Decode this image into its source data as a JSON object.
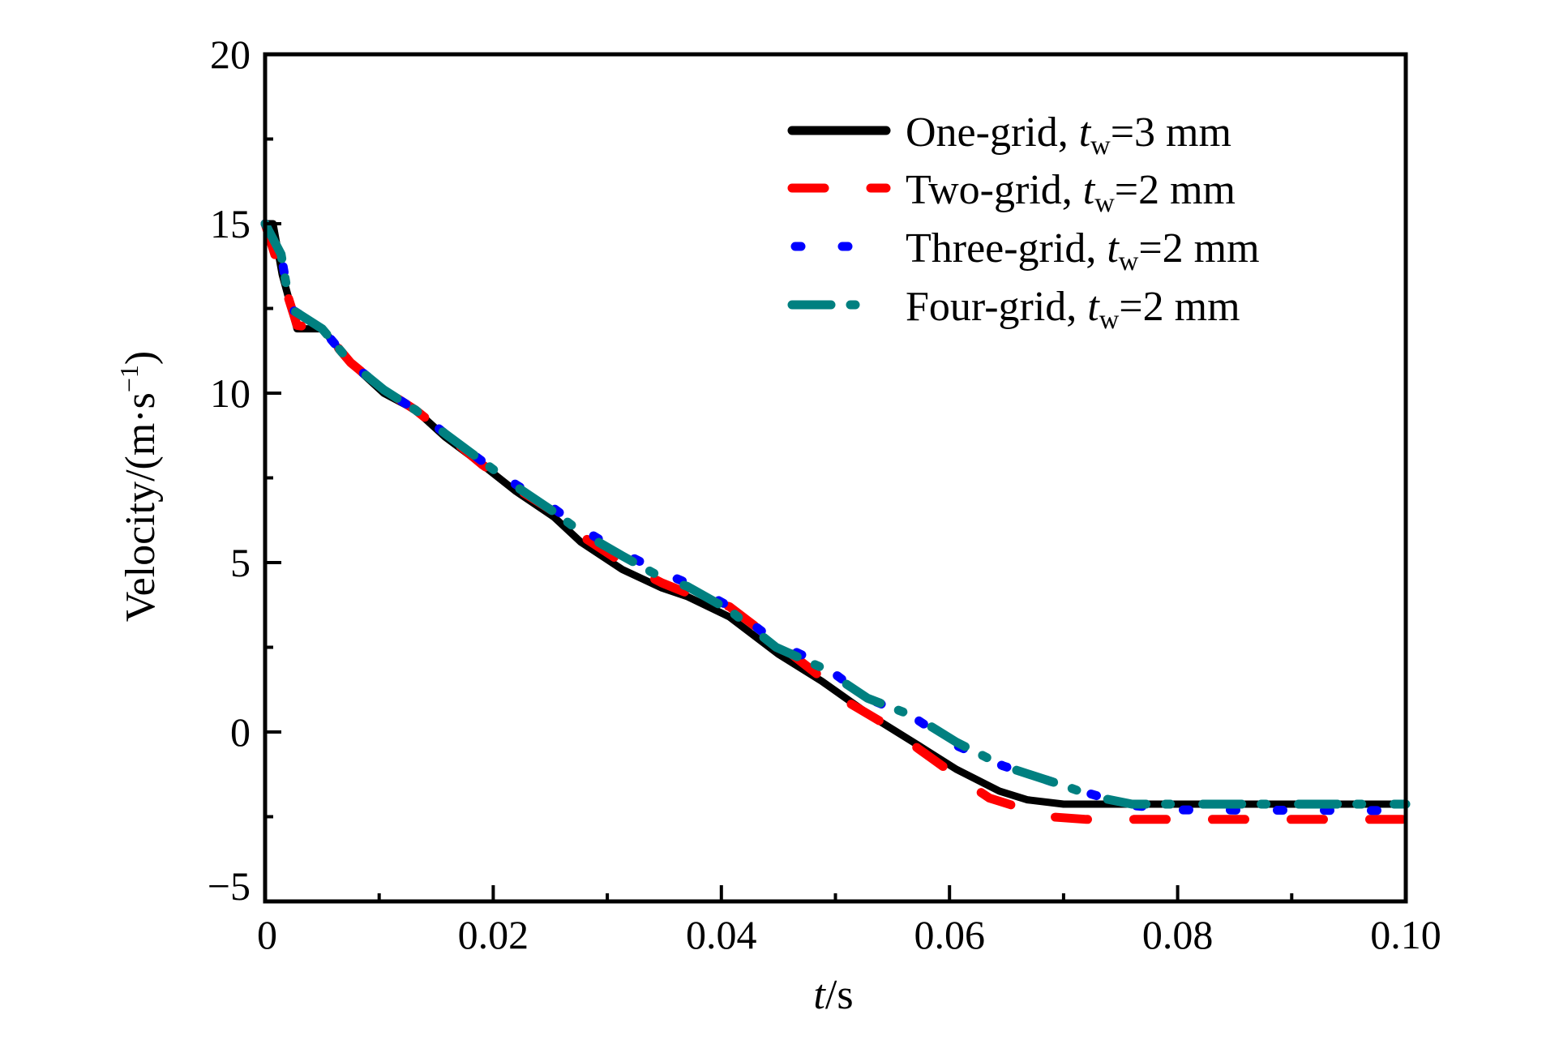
{
  "chart_data": {
    "type": "line",
    "title": "",
    "xlabel": "t/s",
    "xlabel_parts": {
      "var": "t",
      "unit": "/s"
    },
    "ylabel": "Velocity/(m·s⁻¹)",
    "ylabel_parts": {
      "main": "Velocity/(m·s",
      "sup": "−1",
      "close": ")"
    },
    "xlim": [
      0,
      0.1
    ],
    "ylim": [
      -5,
      20
    ],
    "xticks": [
      0,
      0.02,
      0.04,
      0.06,
      0.08,
      0.1
    ],
    "xtick_labels": [
      "0",
      "0.02",
      "0.04",
      "0.06",
      "0.08",
      "0.10"
    ],
    "xminor": [
      0.01,
      0.03,
      0.05,
      0.07,
      0.09
    ],
    "yticks": [
      -5,
      0,
      5,
      10,
      15,
      20
    ],
    "ytick_labels": [
      "−5",
      "0",
      "5",
      "10",
      "15",
      "20"
    ],
    "yminor": [
      -2.5,
      2.5,
      7.5,
      12.5,
      17.5
    ],
    "grid": false,
    "legend_position": "top-right",
    "series": [
      {
        "name": "One-grid, t_w=3 mm",
        "label_main": "One-grid, ",
        "label_var": "t",
        "label_sub": "w",
        "label_rest": "=3 mm",
        "color": "#000000",
        "style": "solid",
        "points": [
          [
            0,
            15
          ],
          [
            0.0007,
            15
          ],
          [
            0.0015,
            13.5
          ],
          [
            0.0028,
            11.9
          ],
          [
            0.005,
            11.9
          ],
          [
            0.0075,
            10.9
          ],
          [
            0.0104,
            10.0
          ],
          [
            0.0132,
            9.5
          ],
          [
            0.0158,
            8.7
          ],
          [
            0.019,
            7.9
          ],
          [
            0.022,
            7.1
          ],
          [
            0.0253,
            6.35
          ],
          [
            0.0277,
            5.6
          ],
          [
            0.0313,
            4.8
          ],
          [
            0.0348,
            4.25
          ],
          [
            0.037,
            4.0
          ],
          [
            0.0407,
            3.4
          ],
          [
            0.045,
            2.3
          ],
          [
            0.0488,
            1.5
          ],
          [
            0.053,
            0.5
          ],
          [
            0.0573,
            -0.4
          ],
          [
            0.0606,
            -1.1
          ],
          [
            0.0644,
            -1.75
          ],
          [
            0.0668,
            -2.0
          ],
          [
            0.07,
            -2.13
          ],
          [
            0.1,
            -2.13
          ]
        ]
      },
      {
        "name": "Two-grid, t_w=2 mm",
        "label_main": "Two-grid, ",
        "label_var": "t",
        "label_sub": "w",
        "label_rest": "=2 mm",
        "color": "#ff0000",
        "style": "dashed",
        "points": [
          [
            0,
            15
          ],
          [
            0.0028,
            12.0
          ],
          [
            0.005,
            11.9
          ],
          [
            0.0075,
            10.9
          ],
          [
            0.0104,
            10.1
          ],
          [
            0.0132,
            9.5
          ],
          [
            0.0158,
            8.8
          ],
          [
            0.019,
            7.9
          ],
          [
            0.022,
            7.2
          ],
          [
            0.0253,
            6.5
          ],
          [
            0.0277,
            5.8
          ],
          [
            0.0313,
            5.0
          ],
          [
            0.0348,
            4.4
          ],
          [
            0.037,
            4.1
          ],
          [
            0.0407,
            3.7
          ],
          [
            0.045,
            2.6
          ],
          [
            0.0488,
            1.6
          ],
          [
            0.051,
            0.9
          ],
          [
            0.0545,
            0.2
          ],
          [
            0.0573,
            -0.5
          ],
          [
            0.0606,
            -1.3
          ],
          [
            0.0635,
            -1.95
          ],
          [
            0.0687,
            -2.5
          ],
          [
            0.072,
            -2.58
          ],
          [
            0.1,
            -2.58
          ]
        ]
      },
      {
        "name": "Three-grid, t_w=2 mm",
        "label_main": "Three-grid, ",
        "label_var": "t",
        "label_sub": "w",
        "label_rest": "=2 mm",
        "color": "#0000ff",
        "style": "dotted",
        "points": [
          [
            0,
            15
          ],
          [
            0.0014,
            14.1
          ],
          [
            0.0022,
            12.5
          ],
          [
            0.005,
            11.9
          ],
          [
            0.0075,
            10.9
          ],
          [
            0.0104,
            10.1
          ],
          [
            0.0132,
            9.5
          ],
          [
            0.0158,
            8.8
          ],
          [
            0.019,
            8.0
          ],
          [
            0.022,
            7.3
          ],
          [
            0.0253,
            6.6
          ],
          [
            0.0277,
            6.0
          ],
          [
            0.0313,
            5.3
          ],
          [
            0.0348,
            4.7
          ],
          [
            0.037,
            4.4
          ],
          [
            0.0407,
            3.7
          ],
          [
            0.045,
            2.6
          ],
          [
            0.0488,
            2.0
          ],
          [
            0.0528,
            1.0
          ],
          [
            0.057,
            0.4
          ],
          [
            0.0606,
            -0.4
          ],
          [
            0.0647,
            -1.0
          ],
          [
            0.0702,
            -1.6
          ],
          [
            0.0755,
            -2.15
          ],
          [
            0.08,
            -2.3
          ],
          [
            0.1,
            -2.32
          ]
        ]
      },
      {
        "name": "Four-grid, t_w=2 mm",
        "label_main": "Four-grid, ",
        "label_var": "t",
        "label_sub": "w",
        "label_rest": "=2 mm",
        "color": "#008080",
        "style": "dash-dot",
        "points": [
          [
            0,
            15
          ],
          [
            0.0014,
            14.1
          ],
          [
            0.0022,
            12.5
          ],
          [
            0.005,
            11.9
          ],
          [
            0.0075,
            10.9
          ],
          [
            0.0104,
            10.1
          ],
          [
            0.0132,
            9.5
          ],
          [
            0.0158,
            8.8
          ],
          [
            0.019,
            8.0
          ],
          [
            0.022,
            7.25
          ],
          [
            0.0253,
            6.5
          ],
          [
            0.0277,
            5.9
          ],
          [
            0.0313,
            5.2
          ],
          [
            0.0348,
            4.55
          ],
          [
            0.037,
            4.3
          ],
          [
            0.0407,
            3.6
          ],
          [
            0.0448,
            2.5
          ],
          [
            0.0488,
            1.9
          ],
          [
            0.0528,
            1.0
          ],
          [
            0.057,
            0.45
          ],
          [
            0.0606,
            -0.3
          ],
          [
            0.0647,
            -1.0
          ],
          [
            0.0702,
            -1.6
          ],
          [
            0.0727,
            -1.91
          ],
          [
            0.076,
            -2.13
          ],
          [
            0.1,
            -2.13
          ]
        ]
      }
    ]
  }
}
